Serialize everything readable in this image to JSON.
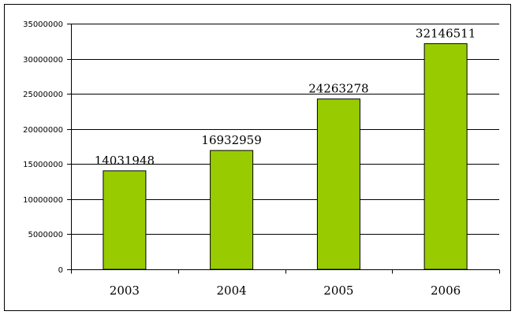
{
  "chart_data": {
    "type": "bar",
    "categories": [
      "2003",
      "2004",
      "2005",
      "2006"
    ],
    "values": [
      14031948,
      16932959,
      24263278,
      32146511
    ],
    "data_labels": [
      "14031948",
      "16932959",
      "24263278",
      "32146511"
    ],
    "title": "",
    "xlabel": "",
    "ylabel": "",
    "ylim": [
      0,
      35000000
    ],
    "yticks": [
      0,
      5000000,
      10000000,
      15000000,
      20000000,
      25000000,
      30000000,
      35000000
    ],
    "ytick_labels": [
      "0",
      "5000000",
      "10000000",
      "15000000",
      "20000000",
      "25000000",
      "30000000",
      "35000000"
    ],
    "grid": "horizontal",
    "legend": "none",
    "bar_color": "#99cc00"
  }
}
